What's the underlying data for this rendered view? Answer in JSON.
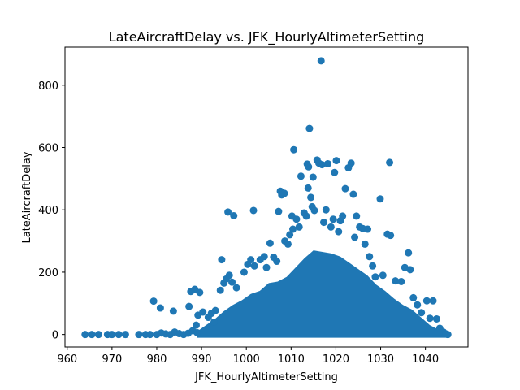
{
  "chart_data": {
    "type": "scatter",
    "title": "LateAircraftDelay vs. JFK_HourlyAltimeterSetting",
    "xlabel": "JFK_HourlyAltimeterSetting",
    "ylabel": "LateAircraftDelay",
    "xlim": [
      959.5,
      1049.5
    ],
    "ylim": [
      -40,
      922
    ],
    "xticks": [
      960,
      970,
      980,
      990,
      1000,
      1010,
      1020,
      1030,
      1040
    ],
    "yticks": [
      0,
      200,
      400,
      600,
      800
    ],
    "color": "#1f77b4",
    "grid": false,
    "legend": "none",
    "series": [
      {
        "values": [
          [
            964,
            0
          ],
          [
            965.5,
            0
          ],
          [
            967,
            0
          ],
          [
            969,
            0
          ],
          [
            970,
            0
          ],
          [
            971.5,
            0
          ],
          [
            973,
            0
          ],
          [
            976,
            0
          ],
          [
            977.5,
            0
          ],
          [
            978.5,
            0
          ],
          [
            980,
            0
          ],
          [
            981,
            5
          ],
          [
            982,
            2
          ],
          [
            983,
            0
          ],
          [
            984,
            8
          ],
          [
            985,
            3
          ],
          [
            986,
            0
          ],
          [
            987,
            4
          ],
          [
            988,
            12
          ],
          [
            989,
            6
          ],
          [
            979.3,
            107
          ],
          [
            980.8,
            85
          ],
          [
            983.7,
            75
          ],
          [
            987.2,
            90
          ],
          [
            987.6,
            138
          ],
          [
            988.5,
            145
          ],
          [
            989.6,
            135
          ],
          [
            989.2,
            62
          ],
          [
            990.3,
            72
          ],
          [
            988.8,
            30
          ],
          [
            991.5,
            55
          ],
          [
            992.2,
            68
          ],
          [
            993.1,
            77
          ],
          [
            992.8,
            40
          ],
          [
            994.5,
            240
          ],
          [
            994.2,
            142
          ],
          [
            995.0,
            165
          ],
          [
            995.5,
            178
          ],
          [
            996.2,
            190
          ],
          [
            996.8,
            168
          ],
          [
            997.8,
            150
          ],
          [
            995.9,
            393
          ],
          [
            997.2,
            381
          ],
          [
            999.5,
            200
          ],
          [
            1000.3,
            225
          ],
          [
            1001.0,
            240
          ],
          [
            1001.6,
            398
          ],
          [
            1001.8,
            220
          ],
          [
            1003.1,
            240
          ],
          [
            1004.0,
            250
          ],
          [
            1004.5,
            215
          ],
          [
            1005.3,
            293
          ],
          [
            1006.1,
            248
          ],
          [
            1006.8,
            235
          ],
          [
            1007.2,
            395
          ],
          [
            1007.6,
            460
          ],
          [
            1007.9,
            448
          ],
          [
            1008.5,
            453
          ],
          [
            1008.6,
            300
          ],
          [
            1009.3,
            290
          ],
          [
            1009.7,
            320
          ],
          [
            1010.4,
            338
          ],
          [
            1010.2,
            380
          ],
          [
            1010.6,
            593
          ],
          [
            1011.2,
            370
          ],
          [
            1011.8,
            345
          ],
          [
            1012.2,
            508
          ],
          [
            1012.9,
            390
          ],
          [
            1013.4,
            380
          ],
          [
            1013.6,
            547
          ],
          [
            1013.9,
            538
          ],
          [
            1013.8,
            470
          ],
          [
            1014.1,
            661
          ],
          [
            1014.4,
            440
          ],
          [
            1014.9,
            505
          ],
          [
            1014.7,
            410
          ],
          [
            1015.2,
            398
          ],
          [
            1015.8,
            560
          ],
          [
            1016.2,
            550
          ],
          [
            1016.7,
            878
          ],
          [
            1016.9,
            545
          ],
          [
            1017.3,
            360
          ],
          [
            1017.8,
            400
          ],
          [
            1018.2,
            548
          ],
          [
            1018.9,
            345
          ],
          [
            1019.4,
            370
          ],
          [
            1019.7,
            520
          ],
          [
            1020.1,
            558
          ],
          [
            1020.6,
            330
          ],
          [
            1021.0,
            365
          ],
          [
            1021.5,
            380
          ],
          [
            1022.1,
            468
          ],
          [
            1022.8,
            535
          ],
          [
            1023.4,
            550
          ],
          [
            1023.9,
            450
          ],
          [
            1024.2,
            312
          ],
          [
            1024.6,
            380
          ],
          [
            1025.3,
            345
          ],
          [
            1026.0,
            340
          ],
          [
            1026.5,
            290
          ],
          [
            1027.1,
            338
          ],
          [
            1027.5,
            250
          ],
          [
            1028.2,
            220
          ],
          [
            1028.8,
            185
          ],
          [
            1029.9,
            435
          ],
          [
            1030.5,
            190
          ],
          [
            1031.5,
            322
          ],
          [
            1032.2,
            318
          ],
          [
            1032.0,
            552
          ],
          [
            1033.3,
            172
          ],
          [
            1034.6,
            170
          ],
          [
            1035.4,
            215
          ],
          [
            1036.2,
            262
          ],
          [
            1036.6,
            208
          ],
          [
            1037.3,
            118
          ],
          [
            1038.2,
            95
          ],
          [
            1039.1,
            70
          ],
          [
            1040.3,
            108
          ],
          [
            1041.0,
            52
          ],
          [
            1041.7,
            108
          ],
          [
            1042.5,
            50
          ],
          [
            1043.2,
            20
          ],
          [
            1044.0,
            8
          ],
          [
            1044.6,
            2
          ],
          [
            1045.0,
            0
          ]
        ]
      }
    ],
    "dense_band": {
      "x": [
        989,
        991,
        993,
        995,
        997,
        999,
        1001,
        1003,
        1005,
        1007,
        1009,
        1011,
        1013,
        1015,
        1017,
        1019,
        1021,
        1023,
        1025,
        1027,
        1029,
        1031,
        1033,
        1035,
        1037,
        1039,
        1041,
        1043,
        1045
      ],
      "y": [
        10,
        30,
        50,
        75,
        95,
        110,
        130,
        140,
        165,
        170,
        185,
        215,
        245,
        270,
        265,
        260,
        250,
        230,
        210,
        190,
        160,
        140,
        115,
        95,
        80,
        55,
        30,
        15,
        2
      ]
    }
  }
}
